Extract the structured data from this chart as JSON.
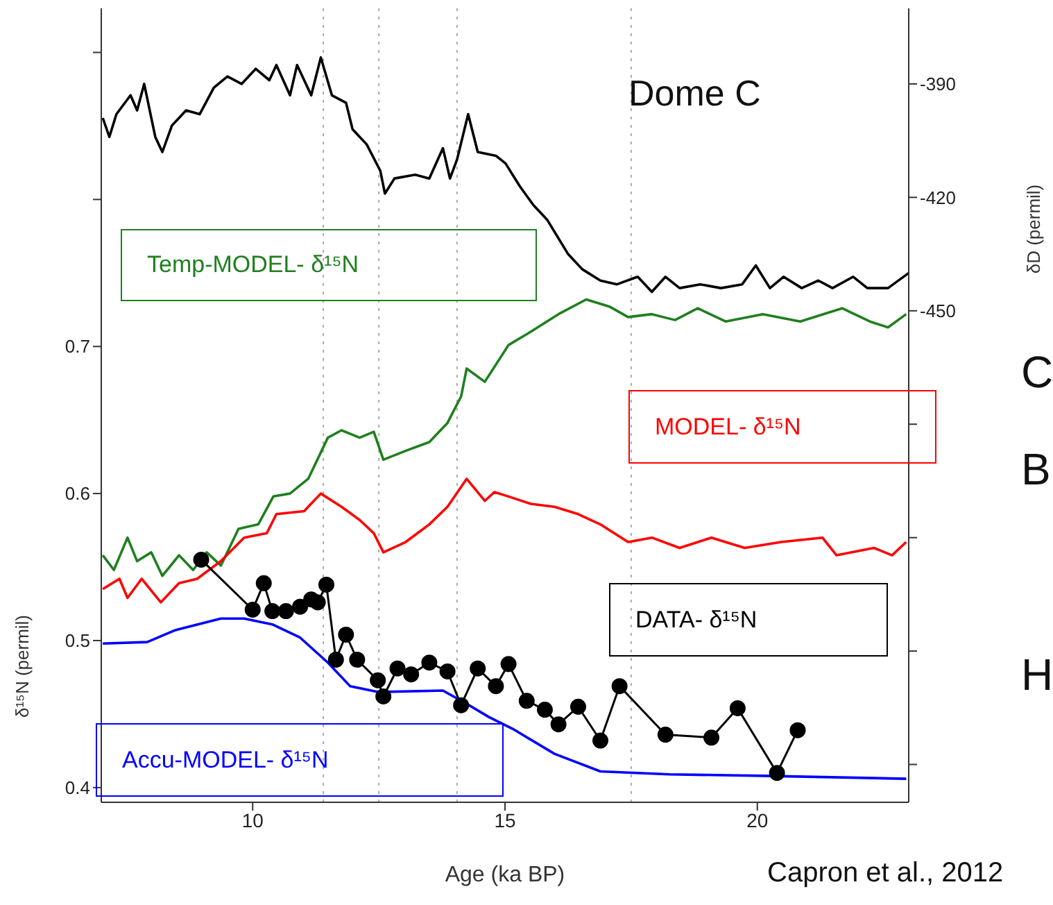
{
  "chart_data": {
    "type": "line",
    "xlabel": "Age (ka BP)",
    "ylabel": "δ¹⁵N (permil)",
    "y2label": "δD (permil)",
    "annotations": [
      "Dome C",
      "Capron et al., 2012",
      "C",
      "B",
      "H"
    ],
    "xlim": [
      7,
      23
    ],
    "xticks": [
      10,
      15,
      20
    ],
    "ylim": [
      0.39,
      0.93
    ],
    "yticks": [
      0.4,
      0.5,
      0.6,
      0.7,
      {
        "value": 0.8,
        "label": null
      },
      {
        "value": 0.9,
        "label": null
      }
    ],
    "y2lim": [
      -580,
      -370
    ],
    "y2ticks": [
      -390,
      -420,
      -450,
      {
        "value": -480,
        "label": null
      },
      {
        "value": -510,
        "label": null
      },
      {
        "value": -540,
        "label": null
      },
      {
        "value": -570,
        "label": null
      }
    ],
    "line_style": "solid",
    "ref_lines": [
      {
        "axis": "x",
        "value": 11.4,
        "color": "#aaaaaa",
        "line_style": "dotted"
      },
      {
        "axis": "x",
        "value": 12.5,
        "color": "#aaaaaa",
        "line_style": "dotted"
      },
      {
        "axis": "x",
        "value": 14.05,
        "color": "#aaaaaa",
        "line_style": "dotted"
      },
      {
        "axis": "x",
        "value": 17.5,
        "color": "#aaaaaa",
        "line_style": "dotted"
      }
    ],
    "series": [
      {
        "color": "#000000",
        "axis": "y2",
        "x": [
          7.03,
          7.16,
          7.3,
          7.58,
          7.71,
          7.85,
          8.07,
          8.21,
          8.4,
          8.68,
          8.95,
          9.23,
          9.5,
          9.78,
          10.06,
          10.33,
          10.47,
          10.74,
          10.88,
          11.16,
          11.35,
          11.57,
          11.85,
          11.98,
          12.26,
          12.53,
          12.62,
          12.81,
          13.22,
          13.5,
          13.77,
          13.91,
          14.05,
          14.27,
          14.46,
          14.82,
          15.01,
          15.29,
          15.56,
          15.84,
          16.25,
          16.53,
          16.89,
          17.22,
          17.63,
          17.91,
          18.18,
          18.46,
          18.87,
          19.28,
          19.7,
          19.97,
          20.25,
          20.52,
          20.88,
          21.21,
          21.49,
          21.9,
          22.18,
          22.59,
          23.0
        ],
        "values": [
          -399,
          -404,
          -398,
          -393,
          -397,
          -390,
          -404,
          -408,
          -401,
          -397,
          -398,
          -391,
          -388,
          -390,
          -386,
          -389,
          -385,
          -393,
          -385,
          -393,
          -383,
          -393,
          -395,
          -402,
          -406,
          -413,
          -419,
          -415,
          -414,
          -415,
          -407,
          -415,
          -410,
          -398,
          -408,
          -409,
          -411,
          -417,
          -422,
          -426,
          -435,
          -439,
          -442,
          -443,
          -441,
          -445,
          -441,
          -444,
          -443,
          -444,
          -443,
          -438,
          -444,
          -441,
          -444,
          -442,
          -444,
          -441,
          -444,
          -444,
          -440
        ]
      },
      {
        "name": "Temp-MODEL- δ¹⁵N",
        "color": "#1f7f1f",
        "x": [
          7.03,
          7.25,
          7.52,
          7.71,
          7.99,
          8.21,
          8.54,
          8.82,
          9.09,
          9.37,
          9.72,
          10.11,
          10.41,
          10.74,
          11.1,
          11.49,
          11.76,
          12.12,
          12.4,
          12.59,
          13.03,
          13.5,
          13.86,
          14.13,
          14.24,
          14.6,
          15.07,
          15.51,
          16.06,
          16.61,
          17.08,
          17.44,
          17.91,
          18.37,
          18.82,
          19.37,
          20.11,
          20.85,
          21.68,
          22.23,
          22.59,
          22.95
        ],
        "values": [
          0.558,
          0.548,
          0.57,
          0.554,
          0.56,
          0.544,
          0.558,
          0.548,
          0.56,
          0.551,
          0.576,
          0.579,
          0.598,
          0.6,
          0.61,
          0.638,
          0.643,
          0.638,
          0.642,
          0.623,
          0.629,
          0.635,
          0.648,
          0.666,
          0.685,
          0.676,
          0.701,
          0.71,
          0.722,
          0.732,
          0.727,
          0.72,
          0.722,
          0.718,
          0.726,
          0.717,
          0.722,
          0.717,
          0.726,
          0.717,
          0.713,
          0.722
        ]
      },
      {
        "name": "MODEL- δ¹⁵N",
        "color": "#ff0000",
        "x": [
          7.03,
          7.36,
          7.52,
          7.8,
          8.18,
          8.54,
          8.9,
          9.37,
          9.83,
          10.28,
          10.47,
          11.02,
          11.35,
          11.76,
          12.12,
          12.4,
          12.59,
          13.03,
          13.5,
          13.86,
          14.24,
          14.6,
          14.79,
          15.07,
          15.51,
          15.98,
          16.45,
          16.89,
          17.44,
          17.91,
          18.46,
          19.09,
          19.75,
          20.47,
          21.29,
          21.57,
          22.31,
          22.67,
          22.95
        ],
        "values": [
          0.535,
          0.542,
          0.529,
          0.542,
          0.526,
          0.539,
          0.542,
          0.554,
          0.57,
          0.573,
          0.586,
          0.588,
          0.6,
          0.591,
          0.582,
          0.573,
          0.56,
          0.567,
          0.579,
          0.591,
          0.61,
          0.595,
          0.601,
          0.598,
          0.593,
          0.591,
          0.586,
          0.579,
          0.567,
          0.57,
          0.563,
          0.57,
          0.563,
          0.567,
          0.57,
          0.558,
          0.563,
          0.558,
          0.567
        ]
      },
      {
        "name": "DATA- δ¹⁵N",
        "color": "#000000",
        "marker": "circle",
        "x": [
          8.98,
          10.0,
          10.22,
          10.39,
          10.66,
          10.94,
          11.16,
          11.29,
          11.46,
          11.65,
          11.85,
          12.07,
          12.48,
          12.59,
          12.87,
          13.14,
          13.5,
          13.86,
          14.13,
          14.46,
          14.82,
          15.07,
          15.43,
          15.79,
          16.06,
          16.45,
          16.89,
          17.27,
          18.18,
          19.09,
          19.61,
          20.39,
          20.8
        ],
        "values": [
          0.555,
          0.521,
          0.539,
          0.52,
          0.52,
          0.523,
          0.528,
          0.526,
          0.538,
          0.487,
          0.504,
          0.487,
          0.473,
          0.462,
          0.481,
          0.477,
          0.485,
          0.479,
          0.456,
          0.481,
          0.469,
          0.484,
          0.459,
          0.453,
          0.443,
          0.455,
          0.432,
          0.469,
          0.436,
          0.434,
          0.454,
          0.41,
          0.439
        ]
      },
      {
        "name": "Accu-MODEL- δ¹⁵N",
        "color": "#0000ff",
        "x": [
          7.03,
          7.91,
          8.46,
          9.37,
          9.83,
          10.39,
          10.94,
          11.49,
          11.93,
          12.48,
          13.77,
          14.24,
          14.68,
          15.15,
          15.98,
          16.89,
          18.26,
          20.11,
          22.95
        ],
        "values": [
          0.498,
          0.499,
          0.507,
          0.515,
          0.515,
          0.511,
          0.502,
          0.485,
          0.469,
          0.465,
          0.466,
          0.457,
          0.448,
          0.44,
          0.423,
          0.411,
          0.409,
          0.408,
          0.406
        ]
      }
    ]
  }
}
